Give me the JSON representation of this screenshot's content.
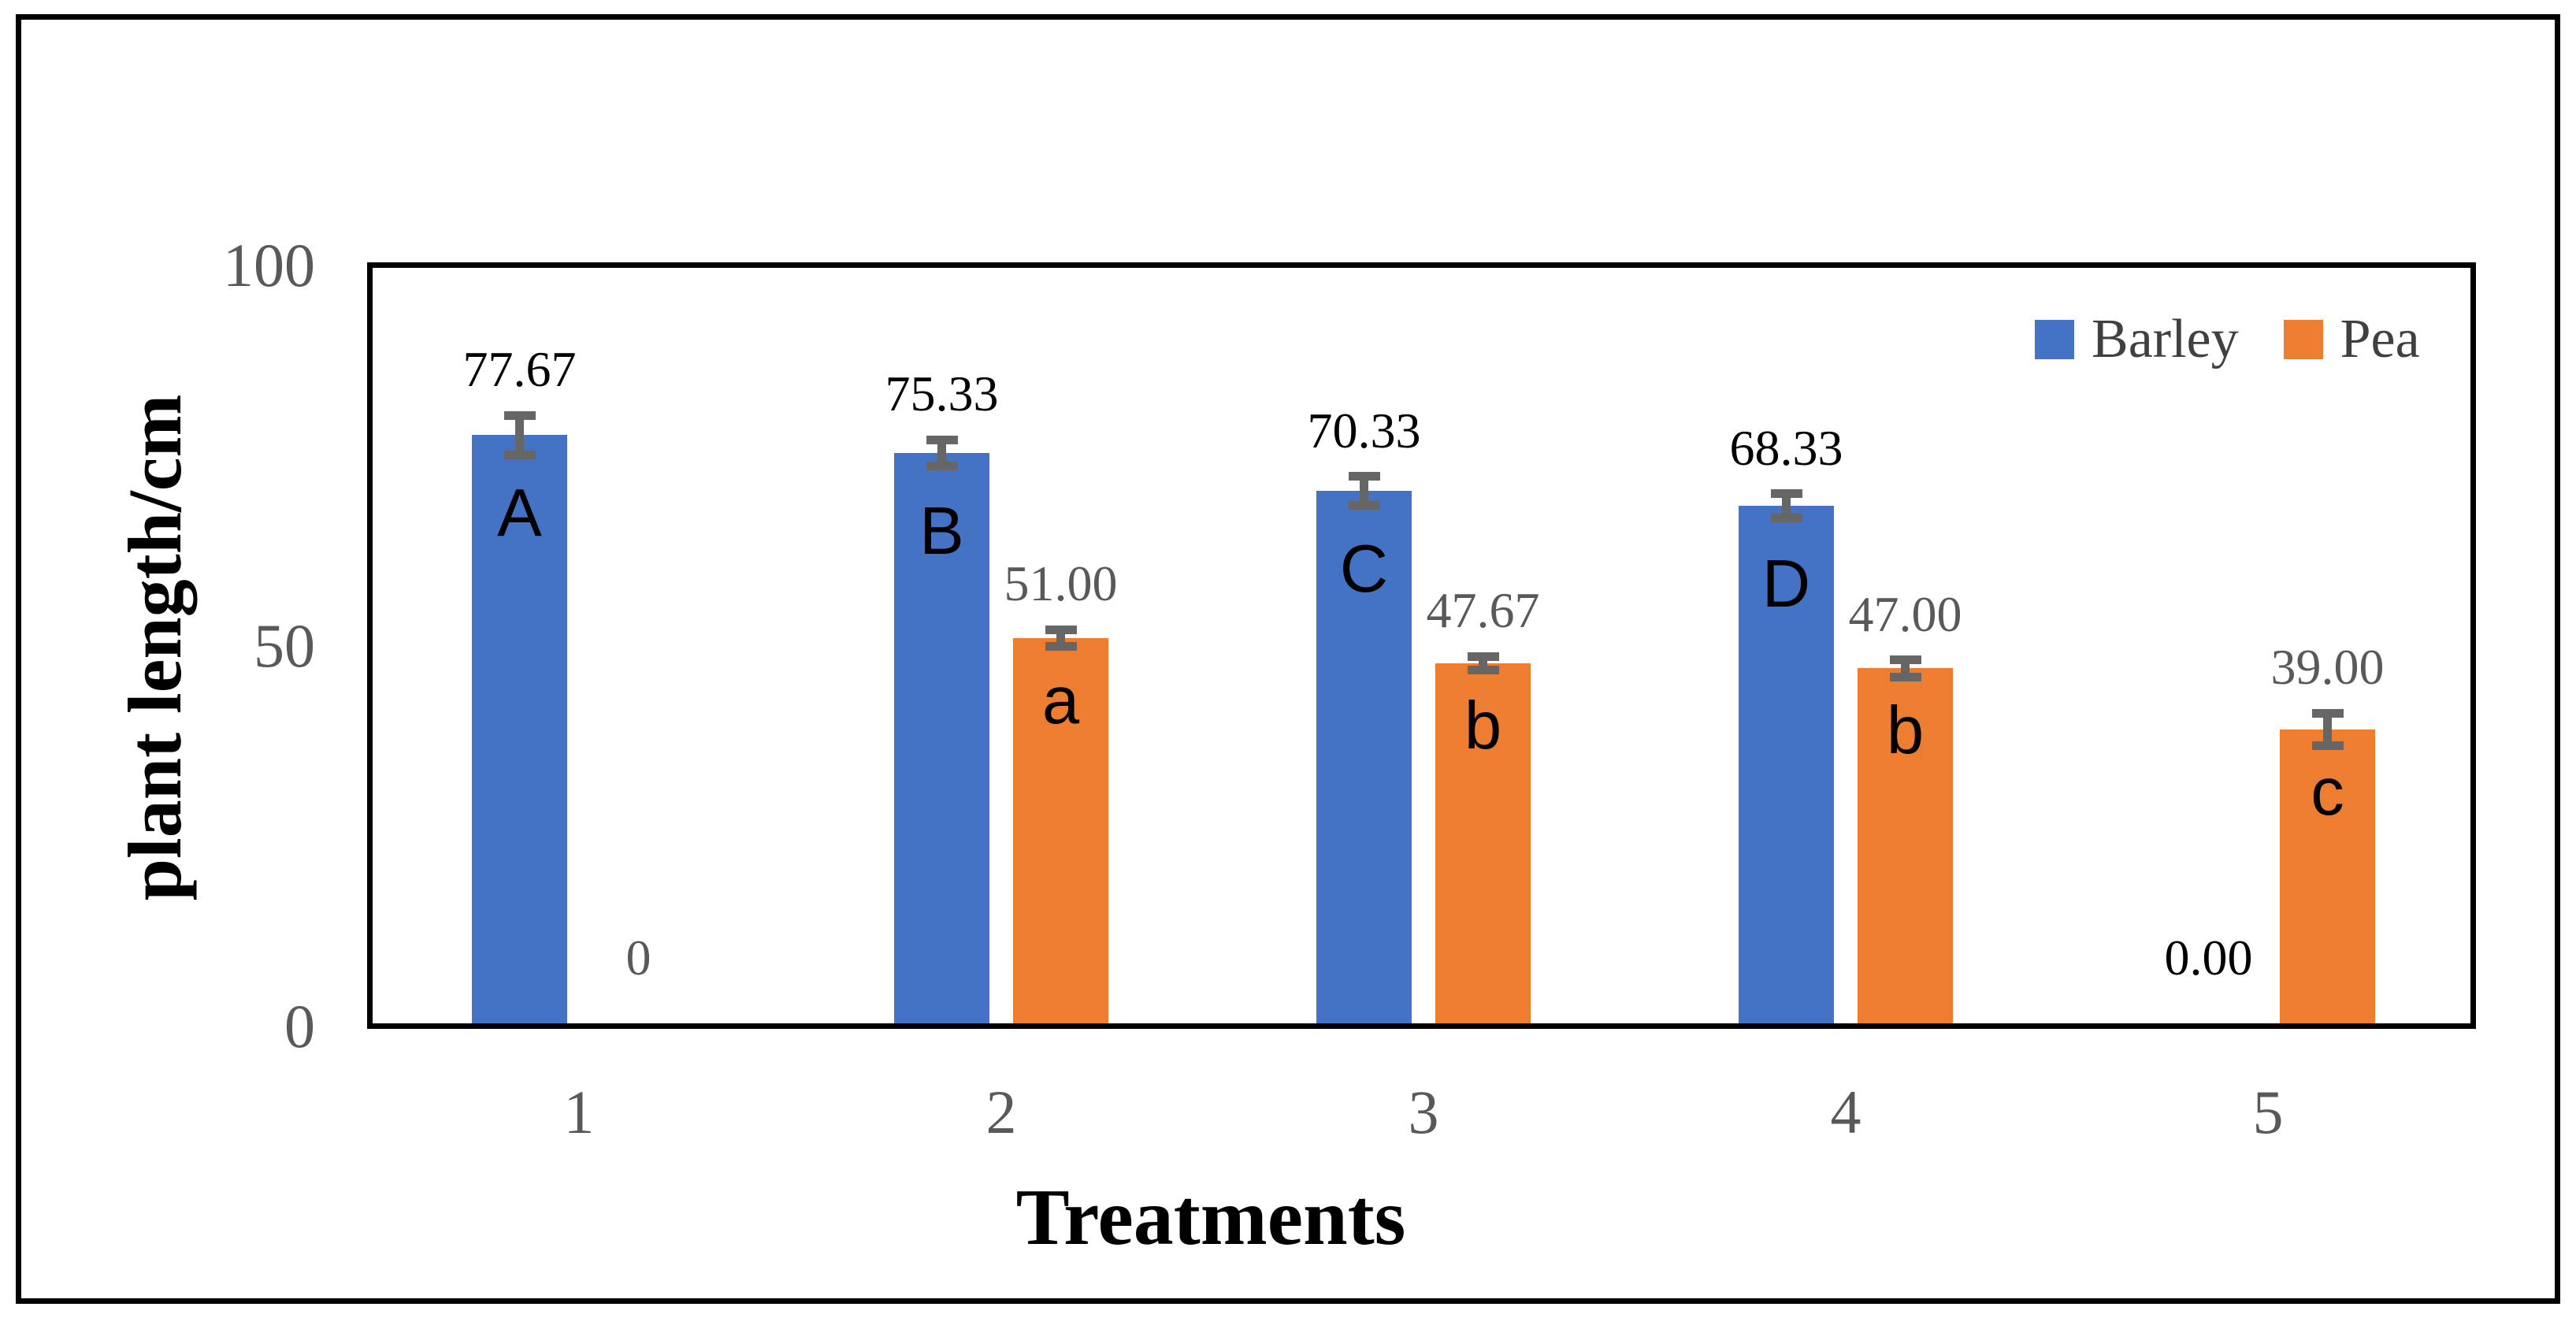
{
  "chart_data": {
    "type": "bar",
    "title": "",
    "xlabel": "Treatments",
    "ylabel": "plant length/cm",
    "ylim": [
      0,
      100
    ],
    "yticks": [
      "0",
      "50",
      "100"
    ],
    "ytick_values": [
      0,
      50,
      100
    ],
    "categories": [
      "1",
      "2",
      "3",
      "4",
      "5"
    ],
    "series": [
      {
        "name": "Barley",
        "color": "#4472C4",
        "values": [
          77.67,
          75.33,
          70.33,
          68.33,
          0
        ],
        "labels": [
          "77.67",
          "75.33",
          "70.33",
          "68.33",
          "0.00"
        ],
        "letters": [
          "A",
          "B",
          "C",
          "D",
          ""
        ],
        "errors": [
          2.6,
          1.7,
          1.9,
          1.6,
          0
        ],
        "label_color": "#000000"
      },
      {
        "name": "Pea",
        "color": "#ED7D31",
        "values": [
          0,
          51.0,
          47.67,
          47.0,
          39.0
        ],
        "labels": [
          "0",
          "51.00",
          "47.67",
          "47.00",
          "39.00"
        ],
        "letters": [
          "",
          "a",
          "b",
          "b",
          "c"
        ],
        "errors": [
          0,
          1.1,
          0.9,
          1.1,
          2.1
        ],
        "label_color": "#595959"
      }
    ],
    "legend": {
      "position": "top-right",
      "entries": [
        "Barley",
        "Pea"
      ]
    },
    "grid": "off",
    "error_bar_color": "#666666",
    "axis_line_color": "#000000",
    "tick_label_color": "#595959"
  }
}
